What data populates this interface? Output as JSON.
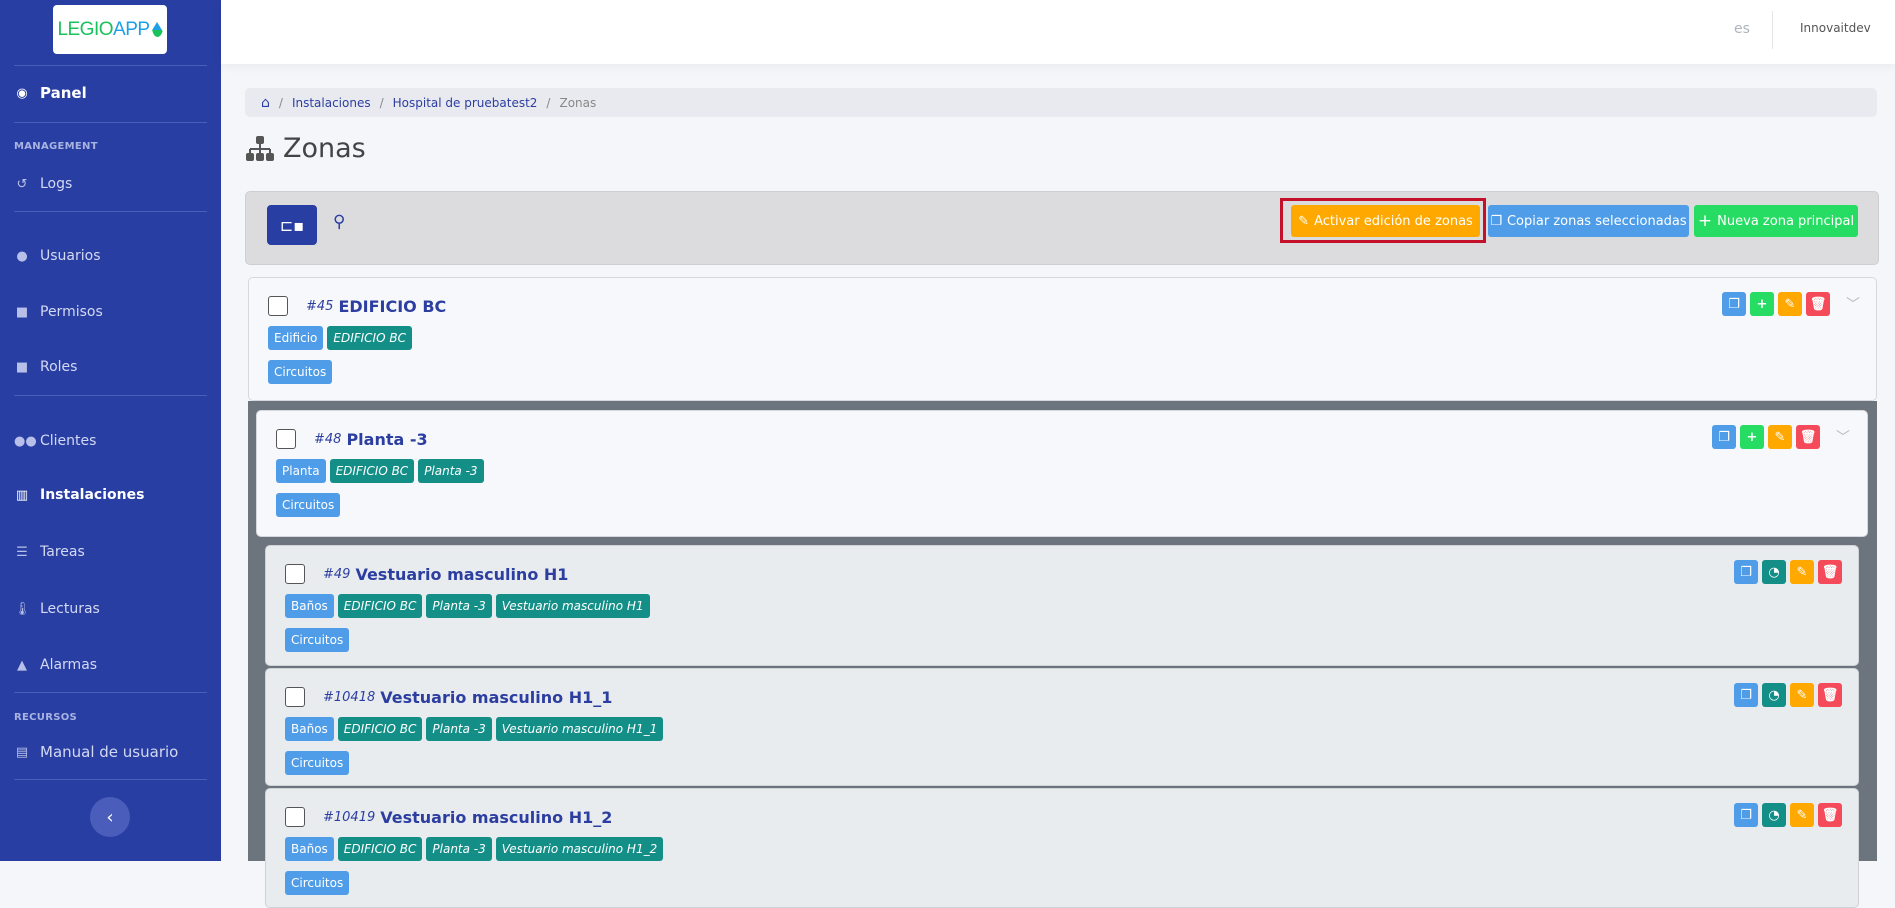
{
  "logo": {
    "text_a": "LEGIO",
    "text_b": "APP"
  },
  "sidebar": {
    "panel": "Panel",
    "sections": {
      "management": "MANAGEMENT",
      "recursos": "RECURSOS"
    },
    "items": [
      {
        "label": "Logs",
        "icon": "history-icon"
      },
      {
        "label": "Usuarios",
        "icon": "user-icon"
      },
      {
        "label": "Permisos",
        "icon": "lock-icon"
      },
      {
        "label": "Roles",
        "icon": "lock-icon"
      },
      {
        "label": "Clientes",
        "icon": "users-icon"
      },
      {
        "label": "Instalaciones",
        "icon": "building-icon",
        "active": true
      },
      {
        "label": "Tareas",
        "icon": "tasks-icon"
      },
      {
        "label": "Lecturas",
        "icon": "thermometer-icon"
      },
      {
        "label": "Alarmas",
        "icon": "warning-icon"
      },
      {
        "label": "Manual de usuario",
        "icon": "file-icon"
      }
    ]
  },
  "topbar": {
    "lang": "es",
    "user": "Innovaitdev"
  },
  "breadcrumb": [
    "Instalaciones",
    "Hospital de pruebatest2",
    "Zonas"
  ],
  "page_title": "Zonas",
  "toolbar": {
    "activate_edit": "Activar edición de zonas",
    "copy_selected": "Copiar zonas seleccionadas",
    "new_zone": "Nueva zona principal"
  },
  "colors": {
    "sidebar": "#283ea2",
    "primary": "#2c3ea0",
    "type_tag": "#4f9de8",
    "path_tag": "#138f88",
    "copy": "#4f9de8",
    "add": "#26dc62",
    "edit": "#ffa800",
    "delete": "#f44a5a",
    "highlight": "#c4112b"
  },
  "zones": [
    {
      "id": "#45",
      "name": "EDIFICIO BC",
      "tags": [
        "Edificio",
        "EDIFICIO BC"
      ],
      "circuits": "Circuitos"
    },
    {
      "id": "#48",
      "name": "Planta -3",
      "tags": [
        "Planta",
        "EDIFICIO BC",
        "Planta -3"
      ],
      "circuits": "Circuitos"
    },
    {
      "id": "#49",
      "name": "Vestuario masculino H1",
      "tags": [
        "Baños",
        "EDIFICIO BC",
        "Planta -3",
        "Vestuario masculino H1"
      ],
      "circuits": "Circuitos"
    },
    {
      "id": "#10418",
      "name": "Vestuario masculino H1_1",
      "tags": [
        "Baños",
        "EDIFICIO BC",
        "Planta -3",
        "Vestuario masculino H1_1"
      ],
      "circuits": "Circuitos"
    },
    {
      "id": "#10419",
      "name": "Vestuario masculino H1_2",
      "tags": [
        "Baños",
        "EDIFICIO BC",
        "Planta -3",
        "Vestuario masculino H1_2"
      ],
      "circuits": "Circuitos"
    }
  ]
}
